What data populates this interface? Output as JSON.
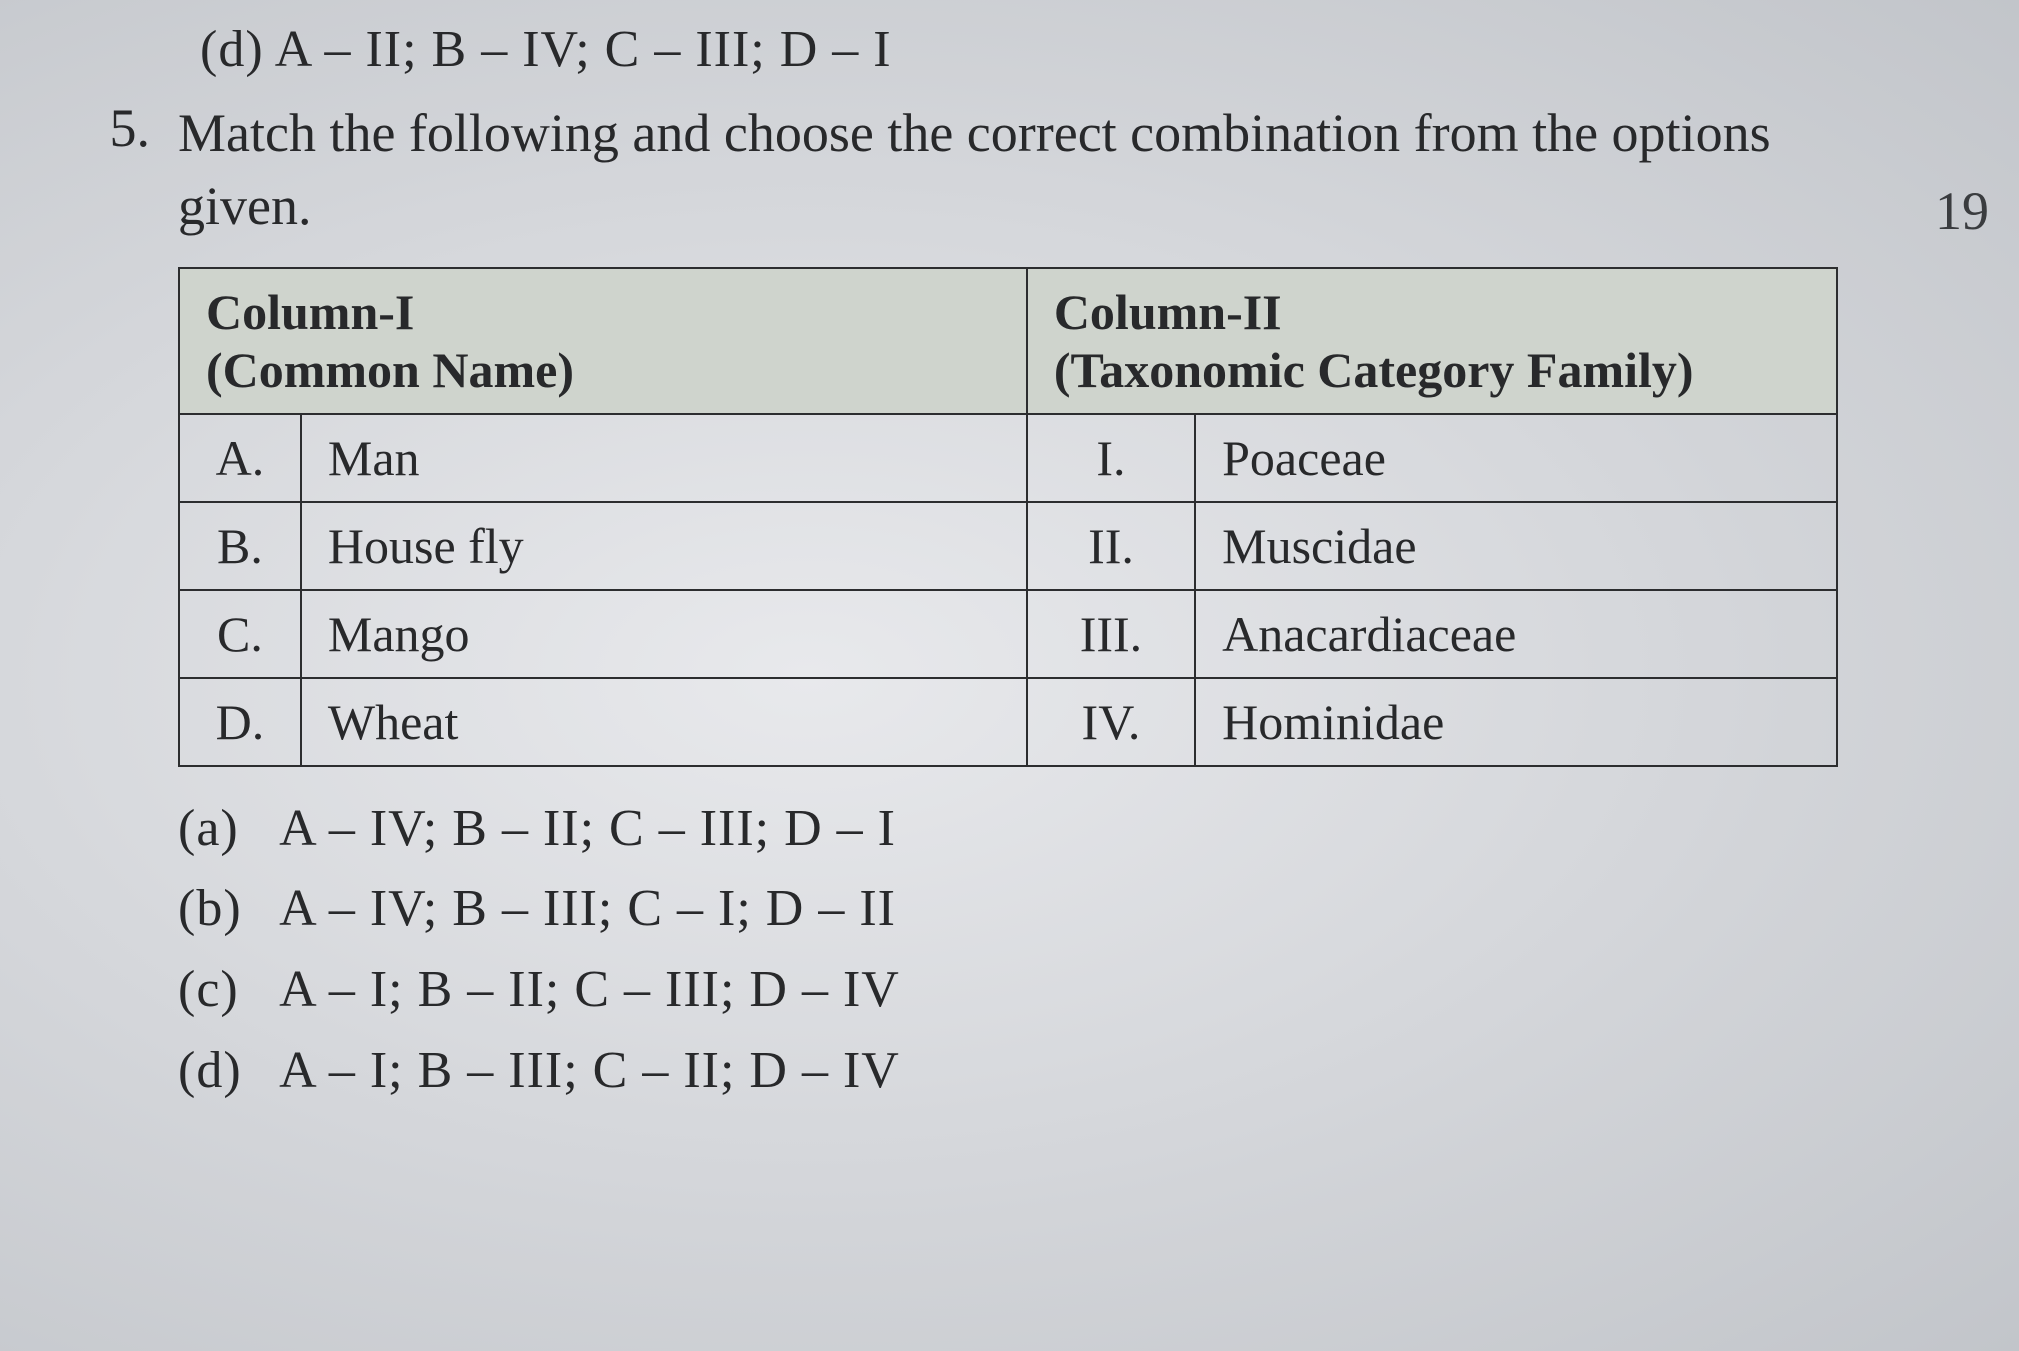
{
  "previous_question": {
    "option_d": "(d)  A – II; B – IV; C – III; D – I"
  },
  "question": {
    "number": "5.",
    "stem": "Match the following and choose the correct combination from the options given.",
    "side_number": "19",
    "table": {
      "header": {
        "col1_title": "Column-I",
        "col1_sub": "(Common Name)",
        "col2_title": "Column-II",
        "col2_sub": "(Taxonomic Category Family)"
      },
      "rows": [
        {
          "letter": "A.",
          "name": "Man",
          "roman": "I.",
          "family": "Poaceae"
        },
        {
          "letter": "B.",
          "name": "House fly",
          "roman": "II.",
          "family": "Muscidae"
        },
        {
          "letter": "C.",
          "name": "Mango",
          "roman": "III.",
          "family": "Anacardiaceae"
        },
        {
          "letter": "D.",
          "name": "Wheat",
          "roman": "IV.",
          "family": "Hominidae"
        }
      ]
    },
    "options": {
      "a": {
        "label": "(a)",
        "text": "A – IV; B – II; C – III; D – I"
      },
      "b": {
        "label": "(b)",
        "text": "A – IV; B – III; C – I; D – II"
      },
      "c": {
        "label": "(c)",
        "text": "A – I; B – II; C – III; D – IV"
      },
      "d": {
        "label": "(d)",
        "text": "A – I; B – III; C – II; D – IV"
      }
    }
  },
  "colors": {
    "text": "#28292b",
    "border": "#2c2d2f",
    "header_bg": "#cfd4cd",
    "page_bg_light": "#e8e9ec",
    "page_bg_dark": "#c2c5ca"
  }
}
